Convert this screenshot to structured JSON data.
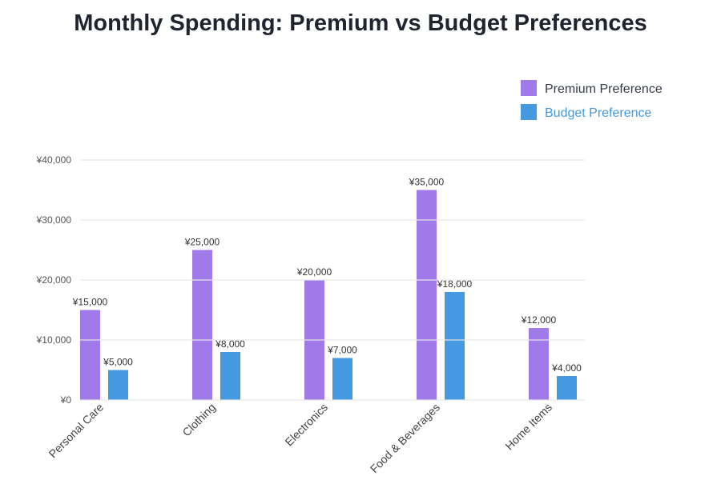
{
  "title": "Monthly Spending: Premium vs Budget Preferences",
  "chart_data": {
    "type": "bar",
    "title": "Monthly Spending: Premium vs Budget Preferences",
    "categories": [
      "Personal Care",
      "Clothing",
      "Electronics",
      "Food & Beverages",
      "Home Items"
    ],
    "series": [
      {
        "name": "Premium Preference",
        "values": [
          15000,
          25000,
          20000,
          35000,
          12000
        ],
        "color": "#a07ae8",
        "labels": [
          "¥15,000",
          "¥25,000",
          "¥20,000",
          "¥35,000",
          "¥12,000"
        ]
      },
      {
        "name": "Budget Preference",
        "values": [
          5000,
          8000,
          7000,
          18000,
          4000
        ],
        "color": "#4499e0",
        "labels": [
          "¥5,000",
          "¥8,000",
          "¥7,000",
          "¥18,000",
          "¥4,000"
        ]
      }
    ],
    "yticks": [
      0,
      10000,
      20000,
      30000,
      40000
    ],
    "ytick_labels": [
      "¥0",
      "¥10,000",
      "¥20,000",
      "¥30,000",
      "¥40,000"
    ],
    "ylim": [
      0,
      40000
    ],
    "grid": true,
    "legend": "top-right",
    "xlabel": "",
    "ylabel": ""
  }
}
